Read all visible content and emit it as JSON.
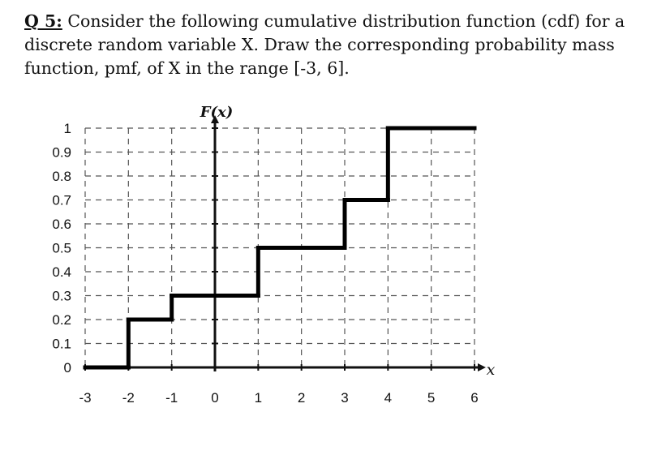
{
  "question": {
    "number": "Q 5:",
    "line1": " Consider the following cumulative distribution function (cdf) for a",
    "line2": "discrete random variable X. Draw the corresponding probability mass",
    "line3": "function, pmf, of X in the range [-3, 6]."
  },
  "chart_data": {
    "type": "line",
    "ylabel": "F(x)",
    "xlabel": "x",
    "xlim": [
      -3,
      6
    ],
    "ylim": [
      0,
      1
    ],
    "x_ticks": [
      "-3",
      "-2",
      "-1",
      "0",
      "1",
      "2",
      "3",
      "4",
      "5",
      "6"
    ],
    "y_ticks": [
      "1",
      "0.9",
      "0.8",
      "0.7",
      "0.6",
      "0.5",
      "0.4",
      "0.3",
      "0.2",
      "0.1",
      "0"
    ],
    "grid": true,
    "step_function": [
      {
        "x_start": -3,
        "x_end": -2,
        "y": 0
      },
      {
        "x_start": -2,
        "x_end": -1,
        "y": 0.2
      },
      {
        "x_start": -1,
        "x_end": 0,
        "y": 0.3
      },
      {
        "x_start": 0,
        "x_end": 1,
        "y": 0.3
      },
      {
        "x_start": 1,
        "x_end": 3,
        "y": 0.5
      },
      {
        "x_start": 3,
        "x_end": 4,
        "y": 0.7
      },
      {
        "x_start": 4,
        "x_end": 6,
        "y": 1.0
      }
    ],
    "jumps": [
      {
        "x": -2,
        "from": 0,
        "to": 0.2
      },
      {
        "x": -1,
        "from": 0.2,
        "to": 0.3
      },
      {
        "x": 1,
        "from": 0.3,
        "to": 0.5
      },
      {
        "x": 3,
        "from": 0.5,
        "to": 0.7
      },
      {
        "x": 4,
        "from": 0.7,
        "to": 1.0
      }
    ]
  }
}
